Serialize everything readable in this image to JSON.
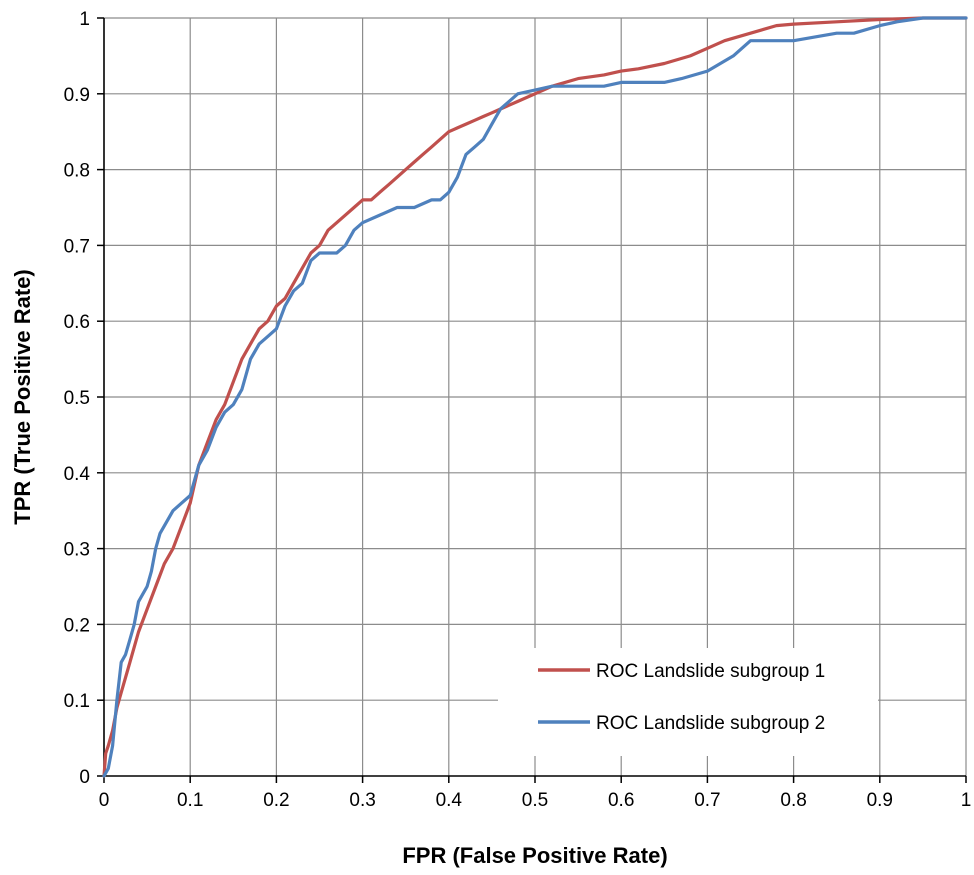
{
  "chart_data": {
    "type": "line",
    "title": "",
    "xlabel": "FPR (False Positive Rate)",
    "ylabel": "TPR (True Positive Rate)",
    "xlim": [
      0,
      1
    ],
    "ylim": [
      0,
      1
    ],
    "xticks": [
      "0",
      "0.1",
      "0.2",
      "0.3",
      "0.4",
      "0.5",
      "0.6",
      "0.7",
      "0.8",
      "0.9",
      "1"
    ],
    "yticks": [
      "0",
      "0.1",
      "0.2",
      "0.3",
      "0.4",
      "0.5",
      "0.6",
      "0.7",
      "0.8",
      "0.9",
      "1"
    ],
    "grid": true,
    "legend_position": "bottom-right",
    "series": [
      {
        "name": "ROC Landslide subgroup 1",
        "color": "#c0504d",
        "x": [
          0,
          0.002,
          0.005,
          0.01,
          0.015,
          0.02,
          0.03,
          0.04,
          0.05,
          0.06,
          0.07,
          0.08,
          0.09,
          0.1,
          0.11,
          0.12,
          0.13,
          0.14,
          0.15,
          0.16,
          0.17,
          0.18,
          0.19,
          0.2,
          0.21,
          0.22,
          0.23,
          0.24,
          0.25,
          0.26,
          0.27,
          0.28,
          0.29,
          0.3,
          0.31,
          0.32,
          0.33,
          0.34,
          0.35,
          0.36,
          0.37,
          0.38,
          0.39,
          0.4,
          0.41,
          0.42,
          0.43,
          0.44,
          0.45,
          0.46,
          0.47,
          0.48,
          0.5,
          0.52,
          0.55,
          0.58,
          0.6,
          0.62,
          0.65,
          0.68,
          0.7,
          0.72,
          0.75,
          0.78,
          0.8,
          0.85,
          0.9,
          0.95,
          1
        ],
        "y": [
          0,
          0.03,
          0.04,
          0.06,
          0.09,
          0.11,
          0.15,
          0.19,
          0.22,
          0.25,
          0.28,
          0.3,
          0.33,
          0.36,
          0.41,
          0.44,
          0.47,
          0.49,
          0.52,
          0.55,
          0.57,
          0.59,
          0.6,
          0.62,
          0.63,
          0.65,
          0.67,
          0.69,
          0.7,
          0.72,
          0.73,
          0.74,
          0.75,
          0.76,
          0.76,
          0.77,
          0.78,
          0.79,
          0.8,
          0.81,
          0.82,
          0.83,
          0.84,
          0.85,
          0.855,
          0.86,
          0.865,
          0.87,
          0.875,
          0.88,
          0.885,
          0.89,
          0.9,
          0.91,
          0.92,
          0.925,
          0.93,
          0.933,
          0.94,
          0.95,
          0.96,
          0.97,
          0.98,
          0.99,
          0.992,
          0.995,
          0.998,
          1,
          1
        ]
      },
      {
        "name": "ROC Landslide subgroup 2",
        "color": "#4f81bd",
        "x": [
          0,
          0.005,
          0.01,
          0.015,
          0.02,
          0.025,
          0.03,
          0.035,
          0.04,
          0.045,
          0.05,
          0.055,
          0.06,
          0.065,
          0.07,
          0.08,
          0.09,
          0.1,
          0.11,
          0.12,
          0.13,
          0.14,
          0.15,
          0.16,
          0.17,
          0.18,
          0.19,
          0.2,
          0.21,
          0.22,
          0.23,
          0.24,
          0.25,
          0.26,
          0.27,
          0.28,
          0.29,
          0.3,
          0.32,
          0.34,
          0.36,
          0.38,
          0.39,
          0.4,
          0.41,
          0.42,
          0.43,
          0.44,
          0.45,
          0.46,
          0.47,
          0.48,
          0.5,
          0.52,
          0.55,
          0.58,
          0.6,
          0.65,
          0.67,
          0.7,
          0.73,
          0.75,
          0.8,
          0.85,
          0.87,
          0.9,
          0.92,
          0.95,
          1
        ],
        "y": [
          0,
          0.01,
          0.04,
          0.1,
          0.15,
          0.16,
          0.18,
          0.2,
          0.23,
          0.24,
          0.25,
          0.27,
          0.3,
          0.32,
          0.33,
          0.35,
          0.36,
          0.37,
          0.41,
          0.43,
          0.46,
          0.48,
          0.49,
          0.51,
          0.55,
          0.57,
          0.58,
          0.59,
          0.62,
          0.64,
          0.65,
          0.68,
          0.69,
          0.69,
          0.69,
          0.7,
          0.72,
          0.73,
          0.74,
          0.75,
          0.75,
          0.76,
          0.76,
          0.77,
          0.79,
          0.82,
          0.83,
          0.84,
          0.86,
          0.88,
          0.89,
          0.9,
          0.905,
          0.91,
          0.91,
          0.91,
          0.915,
          0.915,
          0.92,
          0.93,
          0.95,
          0.97,
          0.97,
          0.98,
          0.98,
          0.99,
          0.995,
          1,
          1
        ]
      }
    ]
  }
}
